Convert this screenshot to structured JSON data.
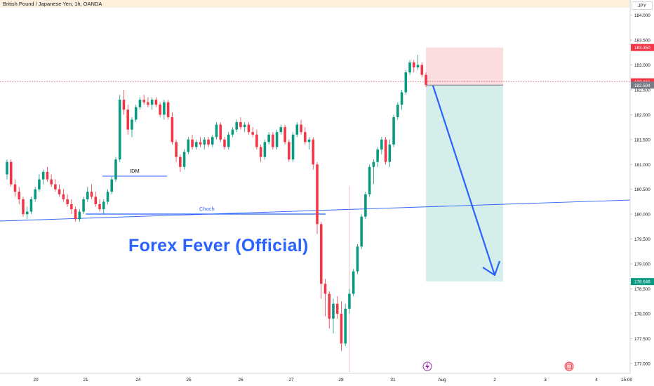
{
  "chart_title": "British Pound / Japanese Yen, 1h, OANDA",
  "currency_label": "JPY",
  "watermark": "Forex Fever (Official)",
  "colors": {
    "up": "#089981",
    "down": "#f23645",
    "trendline": "#2962ff",
    "stop_zone": "#f8bfc4",
    "target_zone": "#b2dfdb"
  },
  "chart_data": {
    "type": "candlestick",
    "x_ticks": [
      "20",
      "21",
      "24",
      "25",
      "26",
      "27",
      "28",
      "31",
      "Aug",
      "2",
      "3",
      "4",
      "15:00"
    ],
    "y_ticks": [
      "184.000",
      "183.500",
      "183.000",
      "182.500",
      "182.000",
      "181.500",
      "181.000",
      "180.500",
      "180.000",
      "179.500",
      "179.000",
      "178.500",
      "178.000",
      "177.500",
      "177.000"
    ],
    "ylim": [
      176.8,
      184.15
    ],
    "price_labels": [
      {
        "text": "183.350",
        "value": 183.35,
        "color": "#f23645"
      },
      {
        "text": "182.661",
        "value": 182.661,
        "color": "#f23645"
      },
      {
        "text": "182.594",
        "value": 182.594,
        "color": "#787b86"
      },
      {
        "text": "178.646",
        "value": 178.646,
        "color": "#089981"
      }
    ],
    "annotations": [
      {
        "text": "IDM",
        "level": 180.75
      },
      {
        "text": "Choch",
        "level": 180.0
      }
    ],
    "short_position": {
      "entry": 182.594,
      "stop": 183.35,
      "target": 178.646
    },
    "ohlc": [
      [
        180.8,
        181.1,
        180.7,
        181.05
      ],
      [
        181.05,
        181.1,
        180.55,
        180.6
      ],
      [
        180.6,
        180.7,
        180.35,
        180.45
      ],
      [
        180.45,
        180.55,
        180.2,
        180.3
      ],
      [
        180.3,
        180.35,
        179.95,
        180.0
      ],
      [
        180.0,
        180.15,
        179.9,
        180.05
      ],
      [
        180.05,
        180.35,
        180.0,
        180.3
      ],
      [
        180.3,
        180.55,
        180.25,
        180.5
      ],
      [
        180.5,
        180.8,
        180.45,
        180.7
      ],
      [
        180.7,
        180.9,
        180.6,
        180.85
      ],
      [
        180.85,
        180.95,
        180.65,
        180.7
      ],
      [
        180.7,
        180.8,
        180.55,
        180.6
      ],
      [
        180.6,
        180.7,
        180.45,
        180.5
      ],
      [
        180.5,
        180.6,
        180.35,
        180.4
      ],
      [
        180.4,
        180.5,
        180.25,
        180.3
      ],
      [
        180.3,
        180.4,
        180.15,
        180.2
      ],
      [
        180.2,
        180.3,
        180.0,
        180.1
      ],
      [
        180.1,
        180.15,
        179.85,
        179.9
      ],
      [
        179.9,
        180.1,
        179.85,
        180.05
      ],
      [
        180.05,
        180.35,
        180.0,
        180.3
      ],
      [
        180.3,
        180.55,
        180.25,
        180.45
      ],
      [
        180.45,
        180.6,
        180.3,
        180.35
      ],
      [
        180.35,
        180.45,
        180.15,
        180.2
      ],
      [
        180.2,
        180.3,
        180.05,
        180.1
      ],
      [
        180.1,
        180.3,
        180.0,
        180.25
      ],
      [
        180.25,
        180.5,
        180.2,
        180.45
      ],
      [
        180.45,
        180.75,
        180.4,
        180.7
      ],
      [
        180.7,
        181.15,
        180.65,
        181.1
      ],
      [
        181.1,
        182.4,
        181.05,
        182.3
      ],
      [
        182.3,
        182.5,
        182.0,
        182.1
      ],
      [
        182.1,
        182.2,
        181.6,
        181.7
      ],
      [
        181.7,
        181.95,
        181.55,
        181.9
      ],
      [
        181.9,
        182.2,
        181.85,
        182.15
      ],
      [
        182.15,
        182.35,
        182.1,
        182.3
      ],
      [
        182.3,
        182.4,
        182.2,
        182.25
      ],
      [
        182.25,
        182.35,
        182.15,
        182.2
      ],
      [
        182.2,
        182.35,
        182.1,
        182.3
      ],
      [
        182.3,
        182.35,
        182.15,
        182.2
      ],
      [
        182.2,
        182.25,
        181.95,
        182.0
      ],
      [
        182.0,
        182.3,
        181.9,
        182.25
      ],
      [
        182.25,
        182.3,
        181.9,
        181.95
      ],
      [
        181.95,
        182.05,
        181.4,
        181.45
      ],
      [
        181.45,
        181.5,
        181.05,
        181.15
      ],
      [
        181.15,
        181.2,
        180.85,
        180.95
      ],
      [
        180.95,
        181.3,
        180.9,
        181.25
      ],
      [
        181.25,
        181.55,
        181.2,
        181.5
      ],
      [
        181.5,
        181.6,
        181.3,
        181.35
      ],
      [
        181.35,
        181.5,
        181.3,
        181.45
      ],
      [
        181.45,
        181.55,
        181.35,
        181.4
      ],
      [
        181.4,
        181.55,
        181.3,
        181.5
      ],
      [
        181.5,
        181.55,
        181.35,
        181.4
      ],
      [
        181.4,
        181.6,
        181.35,
        181.55
      ],
      [
        181.55,
        181.85,
        181.5,
        181.8
      ],
      [
        181.8,
        181.85,
        181.45,
        181.5
      ],
      [
        181.5,
        181.55,
        181.3,
        181.35
      ],
      [
        181.35,
        181.65,
        181.3,
        181.6
      ],
      [
        181.6,
        181.75,
        181.55,
        181.7
      ],
      [
        181.7,
        181.9,
        181.65,
        181.85
      ],
      [
        181.85,
        181.95,
        181.7,
        181.75
      ],
      [
        181.75,
        181.85,
        181.65,
        181.8
      ],
      [
        181.8,
        181.85,
        181.6,
        181.65
      ],
      [
        181.65,
        181.75,
        181.55,
        181.6
      ],
      [
        181.6,
        181.7,
        181.3,
        181.35
      ],
      [
        181.35,
        181.4,
        181.05,
        181.15
      ],
      [
        181.15,
        181.5,
        181.1,
        181.45
      ],
      [
        181.45,
        181.65,
        181.4,
        181.6
      ],
      [
        181.6,
        181.65,
        181.3,
        181.35
      ],
      [
        181.35,
        181.7,
        181.3,
        181.65
      ],
      [
        181.65,
        181.8,
        181.6,
        181.75
      ],
      [
        181.75,
        181.8,
        181.4,
        181.45
      ],
      [
        181.45,
        181.5,
        181.05,
        181.1
      ],
      [
        181.1,
        181.65,
        181.05,
        181.6
      ],
      [
        181.6,
        181.85,
        181.55,
        181.8
      ],
      [
        181.8,
        181.9,
        181.6,
        181.65
      ],
      [
        181.65,
        181.75,
        181.4,
        181.45
      ],
      [
        181.45,
        181.55,
        181.3,
        181.5
      ],
      [
        181.5,
        181.55,
        180.9,
        181.0
      ],
      [
        181.0,
        181.05,
        179.6,
        179.8
      ],
      [
        179.8,
        179.85,
        178.3,
        178.6
      ],
      [
        178.6,
        178.7,
        177.95,
        178.4
      ],
      [
        178.4,
        178.45,
        177.7,
        177.9
      ],
      [
        177.9,
        178.3,
        177.6,
        178.2
      ],
      [
        178.2,
        178.35,
        177.9,
        178.0
      ],
      [
        178.0,
        178.25,
        177.25,
        177.4
      ],
      [
        177.4,
        178.2,
        177.35,
        178.1
      ],
      [
        178.1,
        178.5,
        178.0,
        178.4
      ],
      [
        178.4,
        178.9,
        178.35,
        178.85
      ],
      [
        178.85,
        179.4,
        178.8,
        179.35
      ],
      [
        179.35,
        180.0,
        179.3,
        179.95
      ],
      [
        179.95,
        180.45,
        179.9,
        180.4
      ],
      [
        180.4,
        181.0,
        180.35,
        180.95
      ],
      [
        180.95,
        181.1,
        180.6,
        181.05
      ],
      [
        181.05,
        181.35,
        180.95,
        181.3
      ],
      [
        181.3,
        181.55,
        181.2,
        181.5
      ],
      [
        181.5,
        181.55,
        181.0,
        181.05
      ],
      [
        181.05,
        181.5,
        180.95,
        181.4
      ],
      [
        181.4,
        182.0,
        181.35,
        181.95
      ],
      [
        181.95,
        182.25,
        181.9,
        182.2
      ],
      [
        182.2,
        182.5,
        182.1,
        182.45
      ],
      [
        182.45,
        182.9,
        182.4,
        182.85
      ],
      [
        182.85,
        183.1,
        182.8,
        183.05
      ],
      [
        183.05,
        183.1,
        182.85,
        182.95
      ],
      [
        182.95,
        183.2,
        182.9,
        183.0
      ],
      [
        183.0,
        183.05,
        182.75,
        182.8
      ],
      [
        182.8,
        182.85,
        182.55,
        182.6
      ]
    ]
  }
}
